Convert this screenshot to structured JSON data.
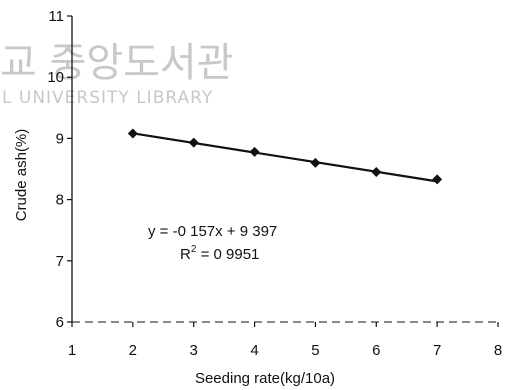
{
  "chart_data": {
    "type": "scatter",
    "xlabel": "Seeding rate(kg/10a)",
    "ylabel": "Crude ash(%)",
    "xlim": [
      1,
      8
    ],
    "ylim": [
      6,
      11
    ],
    "xticks": [
      1,
      2,
      3,
      4,
      5,
      6,
      7,
      8
    ],
    "yticks": [
      6,
      7,
      8,
      9,
      10,
      11
    ],
    "grid": false,
    "series": [
      {
        "x": [
          2,
          3,
          4,
          5,
          6,
          7
        ],
        "y": [
          9.08,
          8.93,
          8.78,
          8.6,
          8.45,
          8.33
        ],
        "marker": "diamond",
        "color": "#111111"
      }
    ],
    "trendline": {
      "slope": -0.157,
      "intercept": 9.397,
      "x_range": [
        2,
        7
      ],
      "equation_label": "y = -0 157x + 9 397",
      "r2_prefix": "R",
      "r2_suffix": " = 0 9951",
      "r2_exponent": "2"
    }
  },
  "watermark": {
    "line1": "교 중앙도서관",
    "line2": "L UNIVERSITY  LIBRARY"
  }
}
